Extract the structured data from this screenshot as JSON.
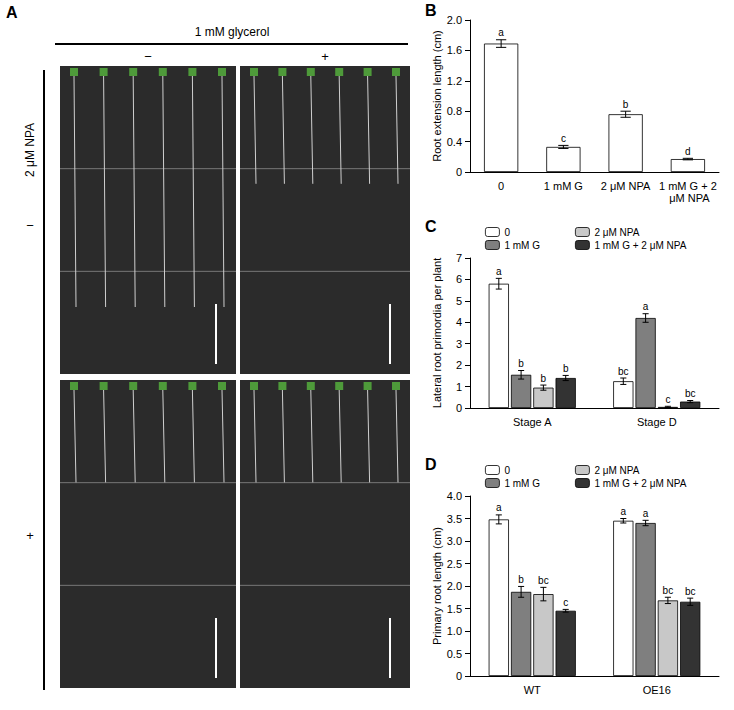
{
  "panel_a": {
    "label": "A",
    "column_header": "1 mM glycerol",
    "column_states": [
      "−",
      "+"
    ],
    "row_header": "2 μM NPA",
    "row_states": [
      "−",
      "+"
    ]
  },
  "chart_data": [
    {
      "panel": "B",
      "type": "bar",
      "categories": [
        "0",
        "1 mM G",
        "2 μM NPA",
        "1 mM G + 2 μM NPA"
      ],
      "values": [
        1.69,
        0.33,
        0.76,
        0.17
      ],
      "errors": [
        0.05,
        0.02,
        0.04,
        0.01
      ],
      "letters": [
        "a",
        "c",
        "b",
        "d"
      ],
      "color": "#ffffff",
      "ylabel": "Root extension length (cm)",
      "ylim": [
        0,
        2
      ],
      "yticks": [
        0,
        0.4,
        0.8,
        1.2,
        1.6,
        {
          "value": 2,
          "label": "2.0"
        }
      ],
      "grid": false
    },
    {
      "panel": "C",
      "type": "bar",
      "categories": [
        "Stage A",
        "Stage D"
      ],
      "series": [
        {
          "name": "0",
          "color": "#ffffff",
          "values": [
            5.8,
            1.25
          ],
          "errors": [
            0.25,
            0.15
          ],
          "letters": [
            "a",
            "bc"
          ]
        },
        {
          "name": "1 mM G",
          "color": "#7f7f7f",
          "values": [
            1.55,
            4.2
          ],
          "errors": [
            0.2,
            0.2
          ],
          "letters": [
            "b",
            "a"
          ]
        },
        {
          "name": "2 μM NPA",
          "color": "#c8c8c8",
          "values": [
            0.95,
            0.05
          ],
          "errors": [
            0.12,
            0.03
          ],
          "letters": [
            "b",
            "c"
          ]
        },
        {
          "name": "1 mM G + 2 μM NPA",
          "color": "#333333",
          "values": [
            1.4,
            0.3
          ],
          "errors": [
            0.12,
            0.05
          ],
          "letters": [
            "b",
            "bc"
          ]
        }
      ],
      "ylabel": "Lateral root primordia per plant",
      "ylim": [
        0,
        7
      ],
      "yticks": [
        0,
        1,
        2,
        3,
        4,
        5,
        6,
        7
      ],
      "legend": "top",
      "grid": false
    },
    {
      "panel": "D",
      "type": "bar",
      "categories": [
        "WT",
        "OE16"
      ],
      "series": [
        {
          "name": "0",
          "color": "#ffffff",
          "values": [
            3.48,
            3.45
          ],
          "errors": [
            0.1,
            0.05
          ],
          "letters": [
            "a",
            "a"
          ]
        },
        {
          "name": "1 mM G",
          "color": "#7f7f7f",
          "values": [
            1.87,
            3.4
          ],
          "errors": [
            0.12,
            0.06
          ],
          "letters": [
            "b",
            "a"
          ]
        },
        {
          "name": "2 μM NPA",
          "color": "#c8c8c8",
          "values": [
            1.82,
            1.68
          ],
          "errors": [
            0.15,
            0.07
          ],
          "letters": [
            "bc",
            "bc"
          ]
        },
        {
          "name": "1 mM G + 2 μM NPA",
          "color": "#333333",
          "values": [
            1.45,
            1.65
          ],
          "errors": [
            0.03,
            0.08
          ],
          "letters": [
            "c",
            "bc"
          ]
        }
      ],
      "ylabel": "Primary root length (cm)",
      "ylim": [
        0,
        4
      ],
      "yticks": [
        0,
        0.5,
        {
          "value": 1,
          "label": "1.0"
        },
        1.5,
        {
          "value": 2,
          "label": "2.0"
        },
        2.5,
        {
          "value": 3,
          "label": "3.0"
        },
        3.5,
        {
          "value": 4,
          "label": "4.0"
        }
      ],
      "legend": "top",
      "grid": false
    }
  ]
}
